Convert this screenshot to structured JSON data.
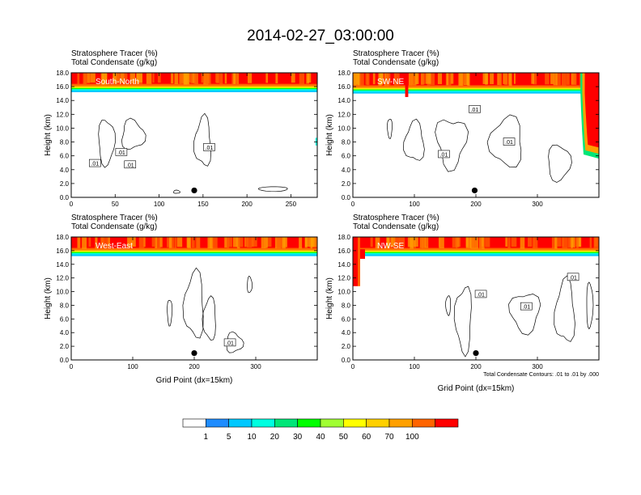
{
  "figure": {
    "title": "2014-02-27_03:00:00",
    "field1_label": "Stratosphere Tracer",
    "field1_units": "(%)",
    "field2_label": "Total Condensate",
    "field2_units": "(g/kg)",
    "y_axis_label": "Height (km)",
    "x_axis_label": "Grid Point (dx=15km)",
    "contour_info": "Total Condensate Contours: .01 to .01 by .000",
    "contour_label": ".01"
  },
  "colorbar": {
    "levels": [
      "1",
      "5",
      "10",
      "20",
      "30",
      "40",
      "50",
      "60",
      "70",
      "100"
    ],
    "colors": [
      "#ffffff",
      "#1e8cff",
      "#00c8ff",
      "#00ffe0",
      "#00e678",
      "#00ff00",
      "#a0ff32",
      "#ffff00",
      "#ffd000",
      "#ffa000",
      "#ff6400",
      "#ff0000"
    ]
  },
  "chart_data": [
    {
      "type": "heatmap",
      "panel_label": "South-North",
      "ylim": [
        0,
        18
      ],
      "y_ticks": [
        "0.0",
        "2.0",
        "4.0",
        "6.0",
        "8.0",
        "10.0",
        "12.0",
        "14.0",
        "16.0",
        "18.0"
      ],
      "xlim": [
        0,
        280
      ],
      "x_ticks": [
        "0",
        "50",
        "100",
        "150",
        "200",
        "250"
      ],
      "x_tick_values": [
        0,
        50,
        100,
        150,
        200,
        250
      ],
      "tracer_base_km": 15.2,
      "marker_x": 140
    },
    {
      "type": "heatmap",
      "panel_label": "SW-NE",
      "ylim": [
        0,
        18
      ],
      "y_ticks": [
        "0.0",
        "2.0",
        "4.0",
        "6.0",
        "8.0",
        "10.0",
        "12.0",
        "14.0",
        "16.0",
        "18.0"
      ],
      "xlim": [
        0,
        400
      ],
      "x_ticks": [
        "0",
        "100",
        "200",
        "300"
      ],
      "x_tick_values": [
        0,
        100,
        200,
        300
      ],
      "tracer_base_km": 15.0,
      "marker_x": 198
    },
    {
      "type": "heatmap",
      "panel_label": "West-East",
      "ylim": [
        0,
        18
      ],
      "y_ticks": [
        "0.0",
        "2.0",
        "4.0",
        "6.0",
        "8.0",
        "10.0",
        "12.0",
        "14.0",
        "16.0",
        "18.0"
      ],
      "xlim": [
        0,
        400
      ],
      "x_ticks": [
        "0",
        "100",
        "200",
        "300"
      ],
      "x_tick_values": [
        0,
        100,
        200,
        300
      ],
      "tracer_base_km": 15.2,
      "marker_x": 200
    },
    {
      "type": "heatmap",
      "panel_label": "NW-SE",
      "ylim": [
        0,
        18
      ],
      "y_ticks": [
        "0.0",
        "2.0",
        "4.0",
        "6.0",
        "8.0",
        "10.0",
        "12.0",
        "14.0",
        "16.0",
        "18.0"
      ],
      "xlim": [
        0,
        400
      ],
      "x_ticks": [
        "0",
        "100",
        "200",
        "300"
      ],
      "x_tick_values": [
        0,
        100,
        200,
        300
      ],
      "tracer_base_km": 15.2,
      "marker_x": 200
    }
  ]
}
